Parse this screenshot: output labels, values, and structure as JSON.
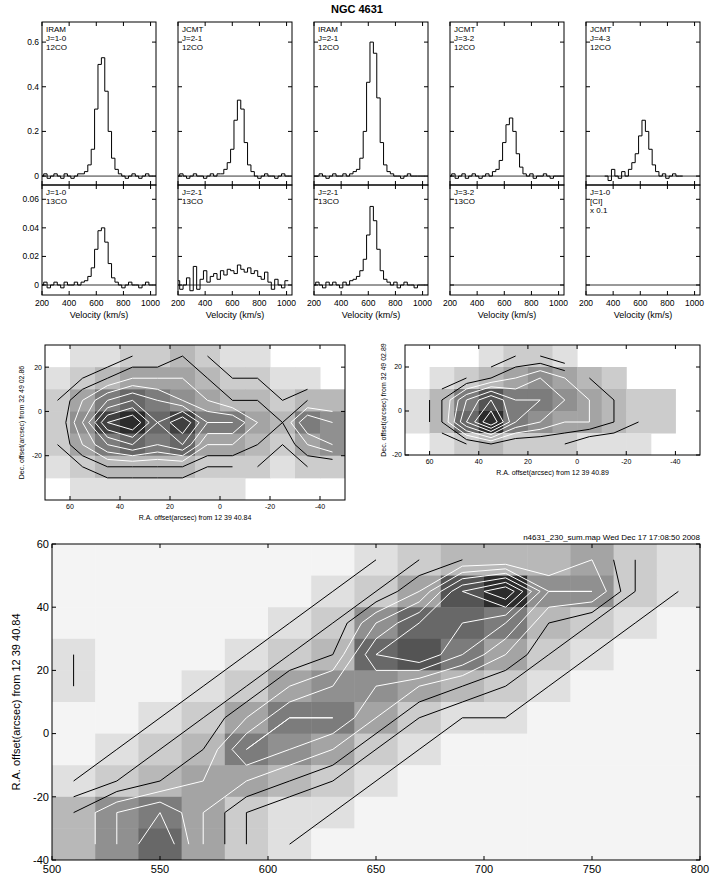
{
  "title": "NGC 4631",
  "chart_data": [
    {
      "type": "line",
      "line_style": "steps",
      "color": "#000000",
      "annotations": [
        "IRAM",
        "J=1-0",
        "12CO"
      ],
      "tick_labels": "y",
      "baseline": 0,
      "xlim": [
        200,
        1040
      ],
      "xticks": [
        200,
        400,
        600,
        800,
        1000
      ],
      "ylim": [
        -0.04,
        0.69
      ],
      "yticks": [
        0,
        0.2,
        0.4,
        0.6
      ],
      "x": [
        200,
        225,
        250,
        275,
        300,
        325,
        350,
        375,
        400,
        425,
        450,
        475,
        500,
        525,
        550,
        575,
        600,
        625,
        650,
        675,
        700,
        725,
        750,
        775,
        800,
        825,
        850,
        875,
        900,
        925,
        950,
        975,
        1000
      ],
      "values": [
        0,
        0.01,
        -0.01,
        0,
        0.01,
        0,
        -0.01,
        0.01,
        0,
        -0.01,
        0,
        0.01,
        0.01,
        0.02,
        0.05,
        0.12,
        0.3,
        0.5,
        0.53,
        0.38,
        0.2,
        0.08,
        0.03,
        0.01,
        0,
        -0.01,
        0,
        0.01,
        0,
        -0.01,
        0,
        0.01,
        0
      ]
    },
    {
      "type": "line",
      "line_style": "steps",
      "color": "#000000",
      "annotations": [
        "JCMT",
        "J=2-1",
        "12CO"
      ],
      "tick_labels": false,
      "baseline": 0,
      "xlim": [
        200,
        1040
      ],
      "xticks": [
        200,
        400,
        600,
        800,
        1000
      ],
      "ylim": [
        -0.04,
        0.69
      ],
      "yticks": [
        0,
        0.2,
        0.4,
        0.6
      ],
      "x": [
        200,
        225,
        250,
        275,
        300,
        325,
        350,
        375,
        400,
        425,
        450,
        475,
        500,
        525,
        550,
        575,
        600,
        625,
        650,
        675,
        700,
        725,
        750,
        775,
        800,
        825,
        850,
        875,
        900,
        925,
        950,
        975,
        1000
      ],
      "values": [
        0,
        0.01,
        0,
        -0.01,
        0,
        0.01,
        0,
        0,
        -0.01,
        0,
        0.01,
        0,
        0.01,
        0.01,
        0.03,
        0.06,
        0.12,
        0.25,
        0.34,
        0.3,
        0.15,
        0.05,
        0.02,
        0,
        -0.01,
        0,
        0.01,
        0,
        0,
        -0.01,
        0,
        0.01,
        0
      ]
    },
    {
      "type": "line",
      "line_style": "steps",
      "color": "#000000",
      "annotations": [
        "IRAM",
        "J=2-1",
        "12CO"
      ],
      "tick_labels": false,
      "baseline": 0,
      "xlim": [
        200,
        1040
      ],
      "xticks": [
        200,
        400,
        600,
        800,
        1000
      ],
      "ylim": [
        -0.04,
        0.69
      ],
      "yticks": [
        0,
        0.2,
        0.4,
        0.6
      ],
      "x": [
        200,
        225,
        250,
        275,
        300,
        325,
        350,
        375,
        400,
        425,
        450,
        475,
        500,
        525,
        550,
        575,
        600,
        625,
        650,
        675,
        700,
        725,
        750,
        775,
        800,
        825,
        850,
        875,
        900,
        925,
        950,
        975,
        1000
      ],
      "values": [
        0,
        0,
        0.01,
        0,
        -0.01,
        0,
        0.01,
        0,
        0,
        0.01,
        0,
        0.01,
        0.02,
        0.03,
        0.08,
        0.2,
        0.42,
        0.6,
        0.55,
        0.35,
        0.15,
        0.05,
        0.02,
        0.01,
        0,
        0,
        -0.01,
        0,
        0.01,
        0,
        0,
        0,
        0
      ]
    },
    {
      "type": "line",
      "line_style": "steps",
      "color": "#000000",
      "annotations": [
        "JCMT",
        "J=3-2",
        "12CO"
      ],
      "tick_labels": false,
      "baseline": 0,
      "xlim": [
        200,
        1040
      ],
      "xticks": [
        200,
        400,
        600,
        800,
        1000
      ],
      "ylim": [
        -0.04,
        0.69
      ],
      "yticks": [
        0,
        0.2,
        0.4,
        0.6
      ],
      "x": [
        200,
        225,
        250,
        275,
        300,
        325,
        350,
        375,
        400,
        425,
        450,
        475,
        500,
        525,
        550,
        575,
        600,
        625,
        650,
        675,
        700,
        725,
        750,
        775,
        800,
        825,
        850,
        875,
        900,
        925,
        950,
        975,
        1000
      ],
      "values": [
        0,
        0.01,
        -0.01,
        0,
        0.01,
        -0.01,
        0,
        0.01,
        0,
        -0.01,
        0,
        0.01,
        0,
        0.02,
        0.03,
        0.07,
        0.15,
        0.23,
        0.26,
        0.2,
        0.1,
        0.04,
        0.01,
        0,
        0.01,
        -0.01,
        0,
        0,
        0.01,
        0,
        -0.01,
        0,
        0
      ]
    },
    {
      "type": "line",
      "line_style": "steps",
      "color": "#000000",
      "annotations": [
        "JCMT",
        "J=4-3",
        "12CO"
      ],
      "tick_labels": false,
      "baseline": 0,
      "xlim": [
        200,
        1040
      ],
      "xticks": [
        200,
        400,
        600,
        800,
        1000
      ],
      "ylim": [
        -0.04,
        0.69
      ],
      "yticks": [
        0,
        0.2,
        0.4,
        0.6
      ],
      "x": [
        200,
        225,
        250,
        275,
        300,
        325,
        350,
        375,
        400,
        425,
        450,
        475,
        500,
        525,
        550,
        575,
        600,
        625,
        650,
        675,
        700,
        725,
        750,
        775,
        800,
        825,
        850,
        875,
        900,
        925,
        950,
        975,
        1000
      ],
      "values": [
        null,
        null,
        null,
        null,
        null,
        null,
        0,
        -0.02,
        0.03,
        0,
        -0.01,
        0.02,
        0,
        0.03,
        0.06,
        0.1,
        0.18,
        0.25,
        0.2,
        0.12,
        0.05,
        0.02,
        0,
        0.01,
        -0.01,
        0,
        0.01,
        0,
        0,
        null,
        null,
        null,
        null
      ]
    },
    {
      "type": "line",
      "line_style": "steps",
      "color": "#000000",
      "annotations": [
        "J=1-0",
        "13CO"
      ],
      "tick_labels": true,
      "baseline": 0,
      "xlabel": "Velocity (km/s)",
      "xlim": [
        200,
        1040
      ],
      "xticks": [
        200,
        400,
        600,
        800,
        1000
      ],
      "ylim": [
        -0.007,
        0.07
      ],
      "yticks": [
        0,
        0.02,
        0.04,
        0.06
      ],
      "x": [
        200,
        225,
        250,
        275,
        300,
        325,
        350,
        375,
        400,
        425,
        450,
        475,
        500,
        525,
        550,
        575,
        600,
        625,
        650,
        675,
        700,
        725,
        750,
        775,
        800,
        825,
        850,
        875,
        900,
        925,
        950,
        975,
        1000
      ],
      "values": [
        0,
        0.002,
        -0.002,
        0,
        0.002,
        0,
        -0.002,
        0.002,
        0,
        0,
        0.002,
        0,
        0.002,
        0.003,
        0.006,
        0.012,
        0.025,
        0.038,
        0.04,
        0.03,
        0.015,
        0.005,
        0.002,
        0,
        -0.002,
        0,
        0.002,
        0,
        0,
        -0.002,
        0,
        0.002,
        0
      ]
    },
    {
      "type": "line",
      "line_style": "steps",
      "color": "#000000",
      "annotations": [
        "J=2-1",
        "13CO"
      ],
      "tick_labels": "x",
      "baseline": 0,
      "xlabel": "Velocity (km/s)",
      "xlim": [
        200,
        1040
      ],
      "xticks": [
        200,
        400,
        600,
        800,
        1000
      ],
      "ylim": [
        -0.007,
        0.07
      ],
      "yticks": [
        0,
        0.02,
        0.04,
        0.06
      ],
      "x": [
        200,
        225,
        250,
        275,
        300,
        325,
        350,
        375,
        400,
        425,
        450,
        475,
        500,
        525,
        550,
        575,
        600,
        625,
        650,
        675,
        700,
        725,
        750,
        775,
        800,
        825,
        850,
        875,
        900,
        925,
        950,
        975,
        1000
      ],
      "values": [
        0.003,
        -0.003,
        0,
        0.005,
        -0.004,
        0.013,
        -0.003,
        0.004,
        0.01,
        0.002,
        0.006,
        0.008,
        0.004,
        0.01,
        0.007,
        0.011,
        0.01,
        0.008,
        0.014,
        0.011,
        0.009,
        0.012,
        0.008,
        0.01,
        0.006,
        0.004,
        0.009,
        0.002,
        -0.003,
        0.004,
        0,
        -0.002,
        0.003
      ]
    },
    {
      "type": "line",
      "line_style": "steps",
      "color": "#000000",
      "annotations": [
        "J=2-1",
        "13CO"
      ],
      "tick_labels": "x",
      "baseline": 0,
      "xlabel": "Velocity (km/s)",
      "xlim": [
        200,
        1040
      ],
      "xticks": [
        200,
        400,
        600,
        800,
        1000
      ],
      "ylim": [
        -0.007,
        0.07
      ],
      "yticks": [
        0,
        0.02,
        0.04,
        0.06
      ],
      "x": [
        200,
        225,
        250,
        275,
        300,
        325,
        350,
        375,
        400,
        425,
        450,
        475,
        500,
        525,
        550,
        575,
        600,
        625,
        650,
        675,
        700,
        725,
        750,
        775,
        800,
        825,
        850,
        875,
        900,
        925,
        950,
        975,
        1000
      ],
      "values": [
        0,
        0.002,
        0,
        -0.002,
        0.002,
        0,
        0.002,
        0,
        -0.002,
        0.002,
        0,
        0.003,
        0.004,
        0.006,
        0.01,
        0.018,
        0.035,
        0.055,
        0.045,
        0.025,
        0.01,
        0.004,
        0.002,
        0,
        0.002,
        -0.002,
        0,
        0.002,
        0,
        0,
        -0.002,
        0,
        0
      ]
    },
    {
      "type": "line",
      "line_style": "steps",
      "color": "#000000",
      "annotations": [
        "J=3-2",
        "13CO"
      ],
      "tick_labels": "x",
      "baseline": 0,
      "xlabel": "Velocity (km/s)",
      "xlim": [
        200,
        1040
      ],
      "xticks": [
        200,
        400,
        600,
        800,
        1000
      ],
      "ylim": [
        -0.007,
        0.07
      ],
      "yticks": [
        0,
        0.02,
        0.04,
        0.06
      ],
      "x": [],
      "values": []
    },
    {
      "type": "line",
      "line_style": "steps",
      "color": "#000000",
      "annotations": [
        "J=1-0",
        "[CI]",
        "x 0.1"
      ],
      "tick_labels": "x",
      "baseline": 0,
      "xlabel": "Velocity (km/s)",
      "xlim": [
        200,
        1040
      ],
      "xticks": [
        200,
        400,
        600,
        800,
        1000
      ],
      "ylim": [
        -0.007,
        0.07
      ],
      "yticks": [
        0,
        0.02,
        0.04,
        0.06
      ],
      "x": [],
      "values": []
    },
    {
      "type": "heatmap",
      "xlabel": "R.A. offset(arcsec) from 12 39 40.84",
      "ylabel": "Dec. offset(arcsec) from 32 49 02.86",
      "tick_labels": true,
      "xlim": [
        70,
        -50
      ],
      "xticks": [
        60,
        40,
        20,
        0,
        -20,
        -40
      ],
      "ylim": [
        -40,
        30
      ],
      "yticks": [
        20,
        0,
        -20
      ],
      "zlim": [
        0,
        10
      ],
      "levels": [
        1,
        2,
        3,
        4,
        5,
        6,
        7,
        8,
        9
      ],
      "x": [
        65,
        55,
        45,
        35,
        25,
        15,
        5,
        -5,
        -15,
        -25,
        -35,
        -45
      ],
      "y": [
        25,
        15,
        5,
        -5,
        -15,
        -25,
        -35
      ],
      "cells": [
        [
          null,
          1,
          1,
          2,
          2,
          3,
          2,
          1,
          1,
          null,
          null,
          null
        ],
        [
          1,
          2,
          3,
          4,
          4,
          4,
          3,
          2,
          2,
          1,
          1,
          null
        ],
        [
          2,
          4,
          6,
          7,
          6,
          5,
          4,
          3,
          3,
          2,
          3,
          3
        ],
        [
          2,
          5,
          9,
          10,
          7,
          9,
          6,
          6,
          4,
          3,
          6,
          5
        ],
        [
          2,
          4,
          6,
          7,
          6,
          7,
          4,
          4,
          3,
          2,
          4,
          5
        ],
        [
          1,
          2,
          3,
          3,
          3,
          3,
          2,
          2,
          2,
          1,
          2,
          2
        ],
        [
          null,
          1,
          1,
          1,
          1,
          1,
          1,
          1,
          null,
          null,
          null,
          null
        ]
      ]
    },
    {
      "type": "heatmap",
      "xlabel": "R.A. offset(arcsec) from 12 39 40.89",
      "ylabel": "Dec. offset(arcsec) from 32 49 02.89",
      "tick_labels": true,
      "xlim": [
        70,
        -50
      ],
      "xticks": [
        60,
        40,
        20,
        0,
        -20,
        -40
      ],
      "ylim": [
        -20,
        30
      ],
      "yticks": [
        20,
        0,
        -20
      ],
      "zlim": [
        0,
        10
      ],
      "levels": [
        1,
        2,
        3,
        4,
        5,
        6,
        7,
        8,
        9
      ],
      "x": [
        65,
        55,
        45,
        35,
        25,
        15,
        5,
        -5,
        -15,
        -25,
        -35,
        -45
      ],
      "y": [
        25,
        15,
        5,
        -5,
        -15
      ],
      "cells": [
        [
          null,
          null,
          null,
          1,
          2,
          2,
          1,
          null,
          null,
          null,
          null,
          null
        ],
        [
          null,
          1,
          2,
          3,
          4,
          5,
          4,
          3,
          2,
          null,
          null,
          null
        ],
        [
          1,
          3,
          6,
          8,
          6,
          6,
          5,
          4,
          3,
          2,
          2,
          null
        ],
        [
          1,
          3,
          7,
          10,
          6,
          5,
          4,
          4,
          3,
          2,
          2,
          null
        ],
        [
          null,
          1,
          2,
          3,
          2,
          2,
          2,
          1,
          1,
          1,
          null,
          null
        ]
      ]
    },
    {
      "type": "heatmap",
      "header": "n4631_230_sum.map Wed Dec 17 17:08:50 2008",
      "ylabel": "R.A. offset(arcsec) from 12 39 40.84",
      "tick_labels": true,
      "xlim": [
        500,
        800
      ],
      "xticks": [
        500,
        550,
        600,
        650,
        700,
        750,
        800
      ],
      "ylim": [
        -40,
        60
      ],
      "yticks": [
        -40,
        -20,
        0,
        20,
        40,
        60
      ],
      "zlim": [
        0,
        10
      ],
      "levels": [
        1,
        2,
        3,
        4,
        5,
        6,
        7,
        8,
        9
      ],
      "x": [
        510,
        530,
        550,
        570,
        590,
        610,
        630,
        650,
        670,
        690,
        710,
        730,
        750,
        770,
        790
      ],
      "y": [
        55,
        45,
        35,
        25,
        15,
        5,
        -5,
        -15,
        -25,
        -35
      ],
      "cells": [
        [
          0,
          0,
          0,
          0,
          0,
          0,
          0,
          1,
          2,
          3,
          3,
          3,
          4,
          2,
          1
        ],
        [
          0,
          0,
          0,
          0,
          0,
          0,
          1,
          2,
          4,
          8,
          10,
          5,
          5,
          2,
          1
        ],
        [
          0,
          0,
          0,
          0,
          0,
          1,
          2,
          5,
          7,
          7,
          6,
          3,
          2,
          1,
          0
        ],
        [
          1,
          0,
          0,
          0,
          1,
          2,
          3,
          7,
          8,
          6,
          4,
          2,
          1,
          0,
          0
        ],
        [
          1,
          0,
          0,
          1,
          2,
          4,
          5,
          5,
          4,
          3,
          2,
          1,
          0,
          0,
          0
        ],
        [
          0,
          0,
          1,
          2,
          4,
          6,
          6,
          4,
          2,
          1,
          1,
          0,
          0,
          0,
          0
        ],
        [
          0,
          1,
          2,
          3,
          6,
          5,
          4,
          2,
          1,
          0,
          0,
          0,
          0,
          0,
          0
        ],
        [
          1,
          2,
          3,
          4,
          4,
          3,
          2,
          1,
          0,
          0,
          0,
          0,
          0,
          0,
          0
        ],
        [
          3,
          5,
          6,
          4,
          2,
          1,
          1,
          0,
          0,
          0,
          0,
          0,
          0,
          0,
          0
        ],
        [
          3,
          5,
          7,
          4,
          2,
          1,
          0,
          0,
          0,
          0,
          0,
          0,
          0,
          0,
          0
        ]
      ]
    }
  ]
}
